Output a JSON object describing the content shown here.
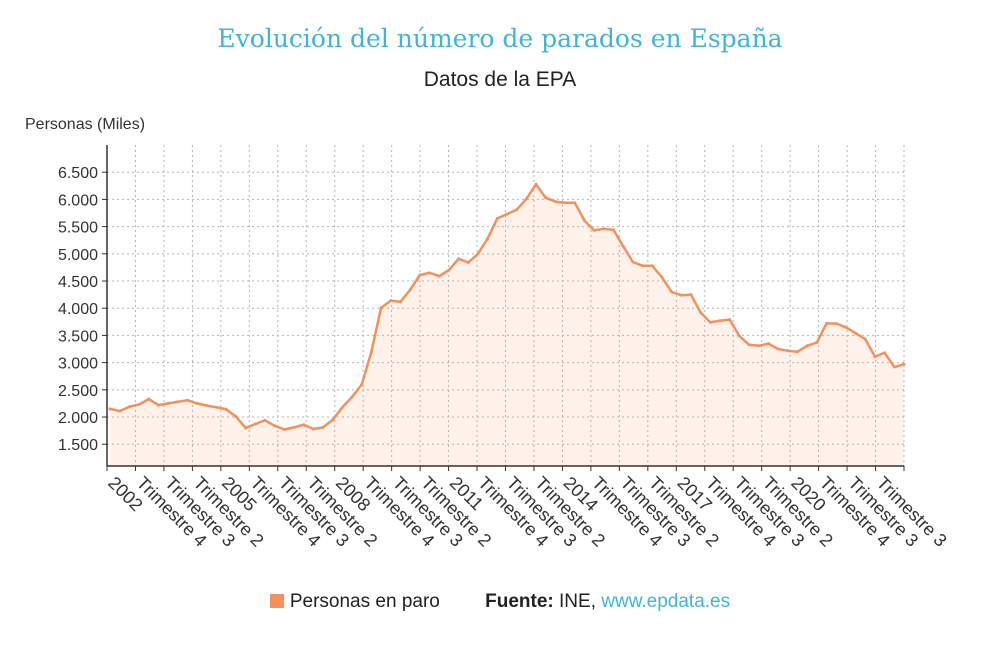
{
  "chart_data": {
    "type": "area",
    "title": "Evolución del número de parados en España",
    "subtitle": "Datos de la EPA",
    "ylabel": "Personas (Miles)",
    "xlabel": "",
    "ylim": [
      1100,
      7000
    ],
    "yticks": [
      1500,
      2000,
      2500,
      3000,
      3500,
      4000,
      4500,
      5000,
      5500,
      6000,
      6500
    ],
    "ytick_labels": [
      "1.500",
      "2.000",
      "2.500",
      "3.000",
      "3.500",
      "4.000",
      "4.500",
      "5.000",
      "5.500",
      "6.000",
      "6.500"
    ],
    "x_tick_labels": [
      "2002",
      "Trimestre 4",
      "Trimestre 3",
      "Trimestre 2",
      "2005",
      "Trimestre 4",
      "Trimestre 3",
      "Trimestre 2",
      "2008",
      "Trimestre 4",
      "Trimestre 3",
      "Trimestre 2",
      "2011",
      "Trimestre 4",
      "Trimestre 3",
      "Trimestre 2",
      "2014",
      "Trimestre 4",
      "Trimestre 3",
      "Trimestre 2",
      "2017",
      "Trimestre 4",
      "Trimestre 3",
      "Trimestre 2",
      "2020",
      "Trimestre 4",
      "Trimestre 3",
      "Trimestre 3"
    ],
    "series": [
      {
        "name": "Personas en paro",
        "color": "#f4915b",
        "values": [
          2150,
          2110,
          2190,
          2230,
          2330,
          2220,
          2250,
          2280,
          2310,
          2250,
          2210,
          2180,
          2140,
          2010,
          1800,
          1870,
          1940,
          1840,
          1770,
          1810,
          1860,
          1780,
          1810,
          1950,
          2180,
          2370,
          2600,
          3200,
          4010,
          4140,
          4120,
          4340,
          4610,
          4650,
          4590,
          4700,
          4910,
          4840,
          5000,
          5280,
          5650,
          5730,
          5810,
          6010,
          6280,
          6030,
          5960,
          5940,
          5940,
          5610,
          5430,
          5460,
          5440,
          5140,
          4850,
          4780,
          4780,
          4570,
          4300,
          4240,
          4250,
          3920,
          3740,
          3770,
          3790,
          3490,
          3330,
          3310,
          3350,
          3250,
          3220,
          3200,
          3310,
          3370,
          3720,
          3720,
          3650,
          3540,
          3430,
          3110,
          3180,
          2920,
          2970
        ]
      }
    ]
  },
  "legend": {
    "label": "Personas en paro"
  },
  "footer": {
    "source_label": "Fuente:",
    "source_text": "INE,",
    "source_link": "www.epdata.es"
  }
}
